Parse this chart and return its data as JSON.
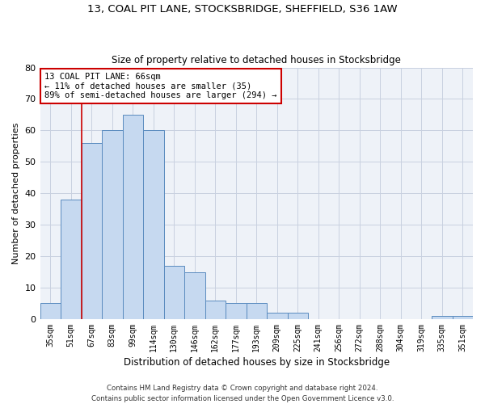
{
  "title1": "13, COAL PIT LANE, STOCKSBRIDGE, SHEFFIELD, S36 1AW",
  "title2": "Size of property relative to detached houses in Stocksbridge",
  "xlabel": "Distribution of detached houses by size in Stocksbridge",
  "ylabel": "Number of detached properties",
  "categories": [
    "35sqm",
    "51sqm",
    "67sqm",
    "83sqm",
    "99sqm",
    "114sqm",
    "130sqm",
    "146sqm",
    "162sqm",
    "177sqm",
    "193sqm",
    "209sqm",
    "225sqm",
    "241sqm",
    "256sqm",
    "272sqm",
    "288sqm",
    "304sqm",
    "319sqm",
    "335sqm",
    "351sqm"
  ],
  "values": [
    5,
    38,
    56,
    60,
    65,
    60,
    17,
    15,
    6,
    5,
    5,
    2,
    2,
    0,
    0,
    0,
    0,
    0,
    0,
    1,
    1
  ],
  "bar_color": "#c6d9f0",
  "bar_edge_color": "#5a8bbf",
  "vline_x": 1.5,
  "vline_color": "#cc0000",
  "annotation_line1": "13 COAL PIT LANE: 66sqm",
  "annotation_line2": "← 11% of detached houses are smaller (35)",
  "annotation_line3": "89% of semi-detached houses are larger (294) →",
  "annotation_box_color": "#cc0000",
  "ylim": [
    0,
    80
  ],
  "yticks": [
    0,
    10,
    20,
    30,
    40,
    50,
    60,
    70,
    80
  ],
  "footer": "Contains HM Land Registry data © Crown copyright and database right 2024.\nContains public sector information licensed under the Open Government Licence v3.0.",
  "bg_color": "#eef2f8",
  "grid_color": "#c8d0e0"
}
